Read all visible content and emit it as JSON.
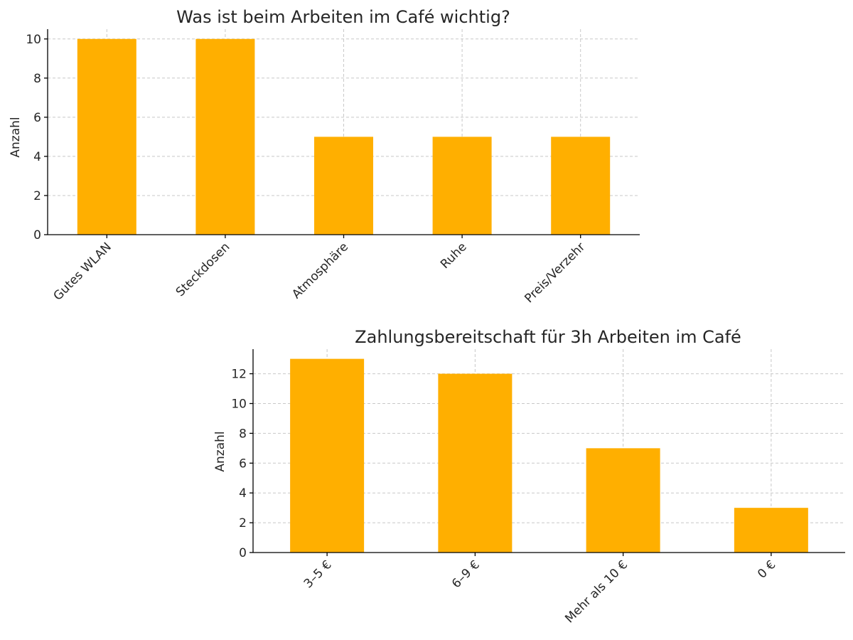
{
  "chart_data": [
    {
      "type": "bar",
      "title": "Was ist beim Arbeiten im Café wichtig?",
      "xlabel": "",
      "ylabel": "Anzahl",
      "categories": [
        "Gutes WLAN",
        "Steckdosen",
        "Atmosphäre",
        "Ruhe",
        "Preis/Verzehr"
      ],
      "values": [
        10,
        10,
        5,
        5,
        5
      ],
      "ylim": [
        0,
        10.5
      ],
      "yticks": [
        0,
        2,
        4,
        6,
        8,
        10
      ],
      "grid": true,
      "color": "#FFAF00"
    },
    {
      "type": "bar",
      "title": "Zahlungsbereitschaft für 3h Arbeiten im Café",
      "xlabel": "",
      "ylabel": "Anzahl",
      "categories": [
        "3–5 €",
        "6–9 €",
        "Mehr als 10 €",
        "0 €"
      ],
      "values": [
        13,
        12,
        7,
        3
      ],
      "ylim": [
        0,
        13.65
      ],
      "yticks": [
        0,
        2,
        4,
        6,
        8,
        10,
        12
      ],
      "grid": true,
      "color": "#FFAF00"
    }
  ]
}
